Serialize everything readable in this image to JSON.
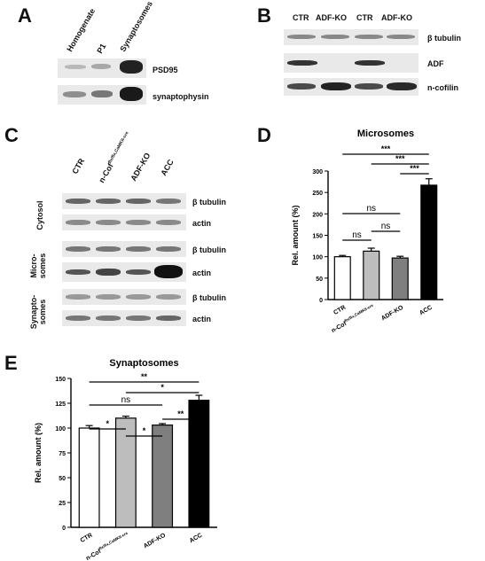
{
  "panels": {
    "A": {
      "letter": "A",
      "lanes": [
        "Homogenate",
        "P1",
        "Synaptosomes"
      ],
      "rows": [
        "PSD95",
        "synaptophysin"
      ]
    },
    "B": {
      "letter": "B",
      "lanes": [
        "CTR",
        "ADF-KO",
        "CTR",
        "ADF-KO"
      ],
      "rows": [
        "β tubulin",
        "ADF",
        "n-cofilin"
      ]
    },
    "C": {
      "letter": "C",
      "lanes": [
        "CTR",
        "n-Cof",
        "flx/flx,CaMKII-cre",
        "ADF-KO",
        "ACC"
      ],
      "groups": [
        "Cytosol",
        "Micro-",
        "somes",
        "Synapto-",
        "somes"
      ],
      "rows": [
        "β tubulin",
        "actin",
        "β tubulin",
        "actin",
        "β tubulin",
        "actin"
      ]
    },
    "D": {
      "letter": "D"
    },
    "E": {
      "letter": "E"
    }
  },
  "chart_data": [
    {
      "type": "bar",
      "title": "Microsomes",
      "ylabel": "Rel. amount (%)",
      "xlabel": "",
      "categories": [
        "CTR",
        "n-Cof",
        "ADF-KO",
        "ACC"
      ],
      "category_superscript": [
        "",
        "flx/flx,CaMKII-cre",
        "",
        ""
      ],
      "values": [
        100,
        113,
        97,
        267
      ],
      "errors": [
        3,
        7,
        4,
        15
      ],
      "colors": [
        "#ffffff",
        "#bdbdbd",
        "#7f7f7f",
        "#000000"
      ],
      "ylim": [
        0,
        300
      ],
      "yticks": [
        0,
        50,
        100,
        150,
        200,
        250,
        300
      ],
      "significance": [
        {
          "from": 0,
          "to": 3,
          "label": "***"
        },
        {
          "from": 1,
          "to": 3,
          "label": "***"
        },
        {
          "from": 2,
          "to": 3,
          "label": "***"
        },
        {
          "from": 0,
          "to": 2,
          "label": "ns"
        },
        {
          "from": 0,
          "to": 1,
          "label": "ns"
        },
        {
          "from": 1,
          "to": 2,
          "label": "ns"
        }
      ]
    },
    {
      "type": "bar",
      "title": "Synaptosomes",
      "ylabel": "Rel. amount (%)",
      "xlabel": "",
      "categories": [
        "CTR",
        "n-Cof",
        "ADF-KO",
        "ACC"
      ],
      "category_superscript": [
        "",
        "flx/flx,CaMKII-cre",
        "",
        ""
      ],
      "values": [
        100,
        110,
        103,
        128
      ],
      "errors": [
        2.5,
        2,
        1.5,
        5
      ],
      "colors": [
        "#ffffff",
        "#bdbdbd",
        "#7f7f7f",
        "#000000"
      ],
      "ylim": [
        0,
        150
      ],
      "yticks": [
        0,
        25,
        50,
        75,
        100,
        125,
        150
      ],
      "significance": [
        {
          "from": 0,
          "to": 3,
          "label": "**"
        },
        {
          "from": 1,
          "to": 3,
          "label": "*"
        },
        {
          "from": 0,
          "to": 2,
          "label": "ns"
        },
        {
          "from": 2,
          "to": 3,
          "label": "**"
        },
        {
          "from": 0,
          "to": 1,
          "label": "*"
        },
        {
          "from": 1,
          "to": 2,
          "label": "*"
        }
      ]
    }
  ]
}
